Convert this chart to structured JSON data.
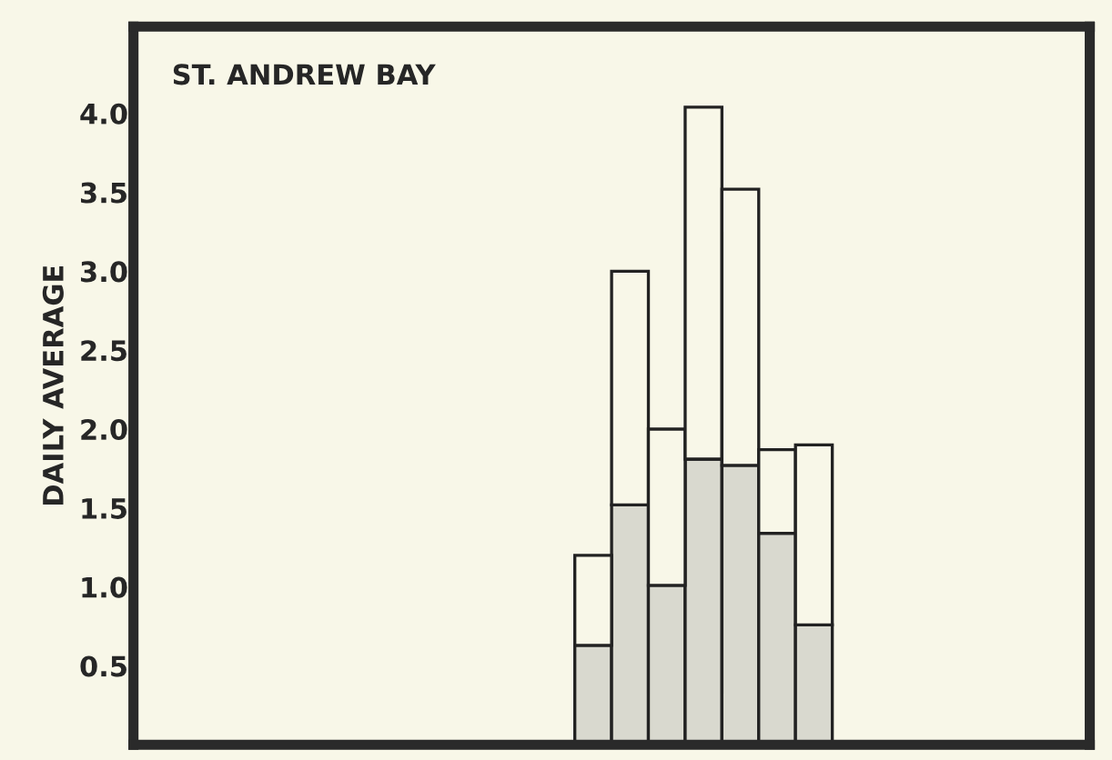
{
  "chart_data": {
    "type": "bar",
    "stacked": true,
    "ylabel": "DAILY AVERAGE",
    "annotations": [
      "ST. ANDREW BAY"
    ],
    "categories": [
      null,
      null,
      null,
      null,
      null,
      null,
      null,
      null,
      null,
      null,
      null,
      null,
      null,
      null,
      null,
      null,
      null,
      null,
      null,
      null,
      null,
      null,
      null,
      null,
      null,
      null
    ],
    "series": [
      {
        "color": "#d9d9cf",
        "values": [
          null,
          null,
          null,
          null,
          null,
          null,
          null,
          null,
          null,
          null,
          null,
          null,
          0.63,
          1.52,
          1.01,
          1.81,
          1.77,
          1.34,
          0.76,
          null,
          null,
          null,
          null,
          null,
          null,
          null
        ]
      },
      {
        "color": "#f8f7e8",
        "values": [
          null,
          null,
          null,
          null,
          null,
          null,
          null,
          null,
          null,
          null,
          null,
          null,
          0.57,
          1.48,
          0.99,
          2.23,
          1.75,
          0.53,
          1.14,
          null,
          null,
          null,
          null,
          null,
          null,
          null
        ]
      }
    ],
    "ylim": [
      0,
      4.55
    ],
    "yticks": [
      0.5,
      {
        "value": 1,
        "label": "1.0"
      },
      1.5,
      {
        "value": 2,
        "label": "2.0"
      },
      2.5,
      {
        "value": 3,
        "label": "3.0"
      },
      3.5,
      {
        "value": 4,
        "label": "4.0"
      }
    ],
    "tick_labels": "y",
    "grid": false,
    "legend": false
  }
}
